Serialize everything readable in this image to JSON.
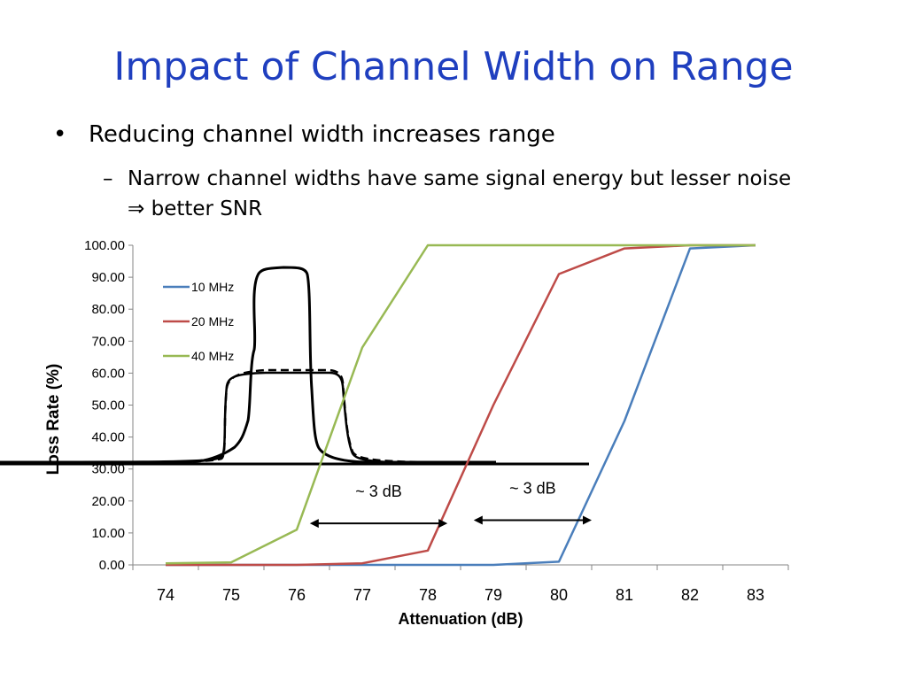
{
  "slide": {
    "title": "Impact of Channel Width on Range",
    "bullet": "Reducing channel width increases range",
    "sub_line1": "Narrow channel widths have same signal energy but lesser noise",
    "sub_arrow": "⇒",
    "sub_line2": "better SNR"
  },
  "chart_data": {
    "type": "line",
    "x": [
      74,
      75,
      76,
      77,
      78,
      79,
      80,
      81,
      82,
      83
    ],
    "series": [
      {
        "name": "10 MHz",
        "color": "#4a7ebb",
        "values": [
          0,
          0,
          0,
          0,
          0,
          0,
          1,
          45,
          99,
          100
        ]
      },
      {
        "name": "20 MHz",
        "color": "#be4b48",
        "values": [
          0,
          0,
          0,
          0.5,
          4.5,
          50,
          91,
          99,
          100,
          100
        ]
      },
      {
        "name": "40 MHz",
        "color": "#98b954",
        "values": [
          0.5,
          0.8,
          11,
          68,
          100,
          100,
          100,
          100,
          100,
          100
        ]
      }
    ],
    "ylim": [
      0,
      100
    ],
    "yticks": [
      "0.00",
      "10.00",
      "20.00",
      "30.00",
      "40.00",
      "50.00",
      "60.00",
      "70.00",
      "80.00",
      "90.00",
      "100.00"
    ],
    "xlabel": "Attenuation (dB)",
    "ylabel": "Loss Rate (%)",
    "legend_position": "top-left",
    "annotations": [
      {
        "text": "~ 3 dB",
        "from_x": 76.2,
        "to_x": 78.3,
        "y": 13
      },
      {
        "text": "~ 3 dB",
        "from_x": 78.7,
        "to_x": 80.5,
        "y": 14
      }
    ]
  }
}
